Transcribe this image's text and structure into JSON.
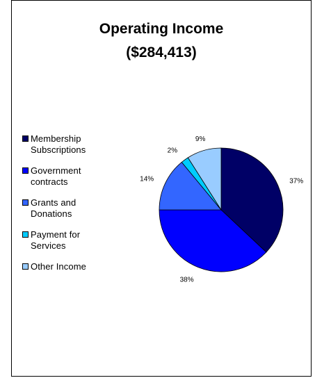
{
  "chart_data": {
    "type": "pie",
    "title": "Operating Income",
    "subtitle": "($284,413)",
    "categories": [
      "Membership Subscriptions",
      "Government contracts",
      "Grants and Donations",
      "Payment for Services",
      "Other Income"
    ],
    "values": [
      37,
      38,
      14,
      2,
      9
    ],
    "data_labels": [
      "37%",
      "38%",
      "14%",
      "2%",
      "9%"
    ],
    "colors": [
      "#000066",
      "#0000ff",
      "#3366ff",
      "#00ccff",
      "#99ccff"
    ],
    "legend_placement": "left"
  },
  "legend": {
    "items": [
      {
        "label": "Membership Subscriptions",
        "color": "#000066"
      },
      {
        "label": "Government contracts",
        "color": "#0000ff"
      },
      {
        "label": "Grants and Donations",
        "color": "#3366ff"
      },
      {
        "label": "Payment for Services",
        "color": "#00ccff"
      },
      {
        "label": "Other Income",
        "color": "#99ccff"
      }
    ]
  }
}
